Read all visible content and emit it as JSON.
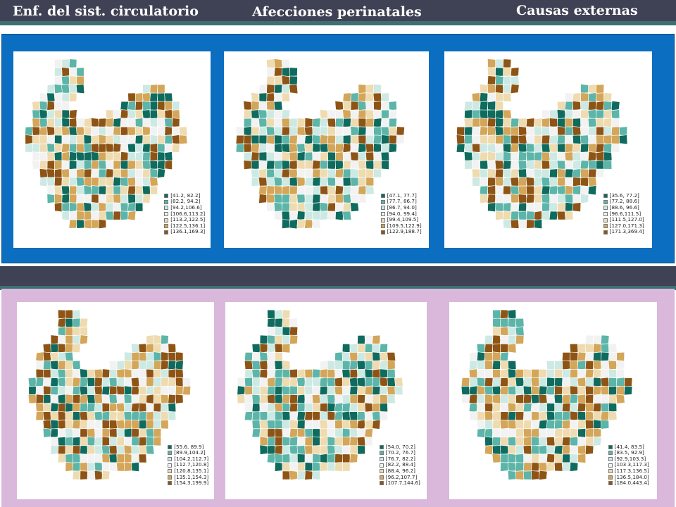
{
  "headers": [
    "Enf. del sist. circulatorio",
    "Afecciones perinatales",
    "Causas externas"
  ],
  "palette": [
    "#0f6b5e",
    "#5cb5a8",
    "#cde9e3",
    "#f2f2f2",
    "#efdbb0",
    "#d3a659",
    "#8e5415"
  ],
  "maps": [
    {
      "row": "top",
      "col": 0,
      "legend": [
        "[41.2, 82.2]",
        "[82.2, 94.2]",
        "[94.2,106.6]",
        "[106.6,113.2]",
        "[113.2,122.5]",
        "[122.5,136.1]",
        "[136.1,169.3]"
      ]
    },
    {
      "row": "top",
      "col": 1,
      "legend": [
        "[47.1, 77.7]",
        "[77.7, 86.7]",
        "[86.7, 94.0]",
        "[94.0, 99.4]",
        "[99.4,109.5]",
        "[109.5,122.9]",
        "[122.9,188.7]"
      ]
    },
    {
      "row": "top",
      "col": 2,
      "legend": [
        "[35.6, 77.2]",
        "[77.2, 88.6]",
        "[88.6, 96.6]",
        "[96.6,111.5]",
        "[111.5,127.0]",
        "[127.0,171.3]",
        "[171.3,369.4]"
      ]
    },
    {
      "row": "bottom",
      "col": 0,
      "legend": [
        "[55.6, 89.9]",
        "[89.9,104.2]",
        "[104.2,112.7]",
        "[112.7,120.8]",
        "[120.8,135.1]",
        "[135.1,154.3]",
        "[154.3,199.9]"
      ]
    },
    {
      "row": "bottom",
      "col": 1,
      "legend": [
        "[54.0, 70.2]",
        "[70.2, 76.7]",
        "[76.7, 82.2]",
        "[82.2, 88.4]",
        "[88.4, 96.2]",
        "[96.2,107.7]",
        "[107.7,144.6]"
      ]
    },
    {
      "row": "bottom",
      "col": 2,
      "legend": [
        "[41.4, 83.5]",
        "[83.5, 92.9]",
        "[92.9,103.3]",
        "[103.3,117.3]",
        "[117.3,136.5]",
        "[136.5,184.0]",
        "[184.0,443.4]"
      ]
    }
  ]
}
